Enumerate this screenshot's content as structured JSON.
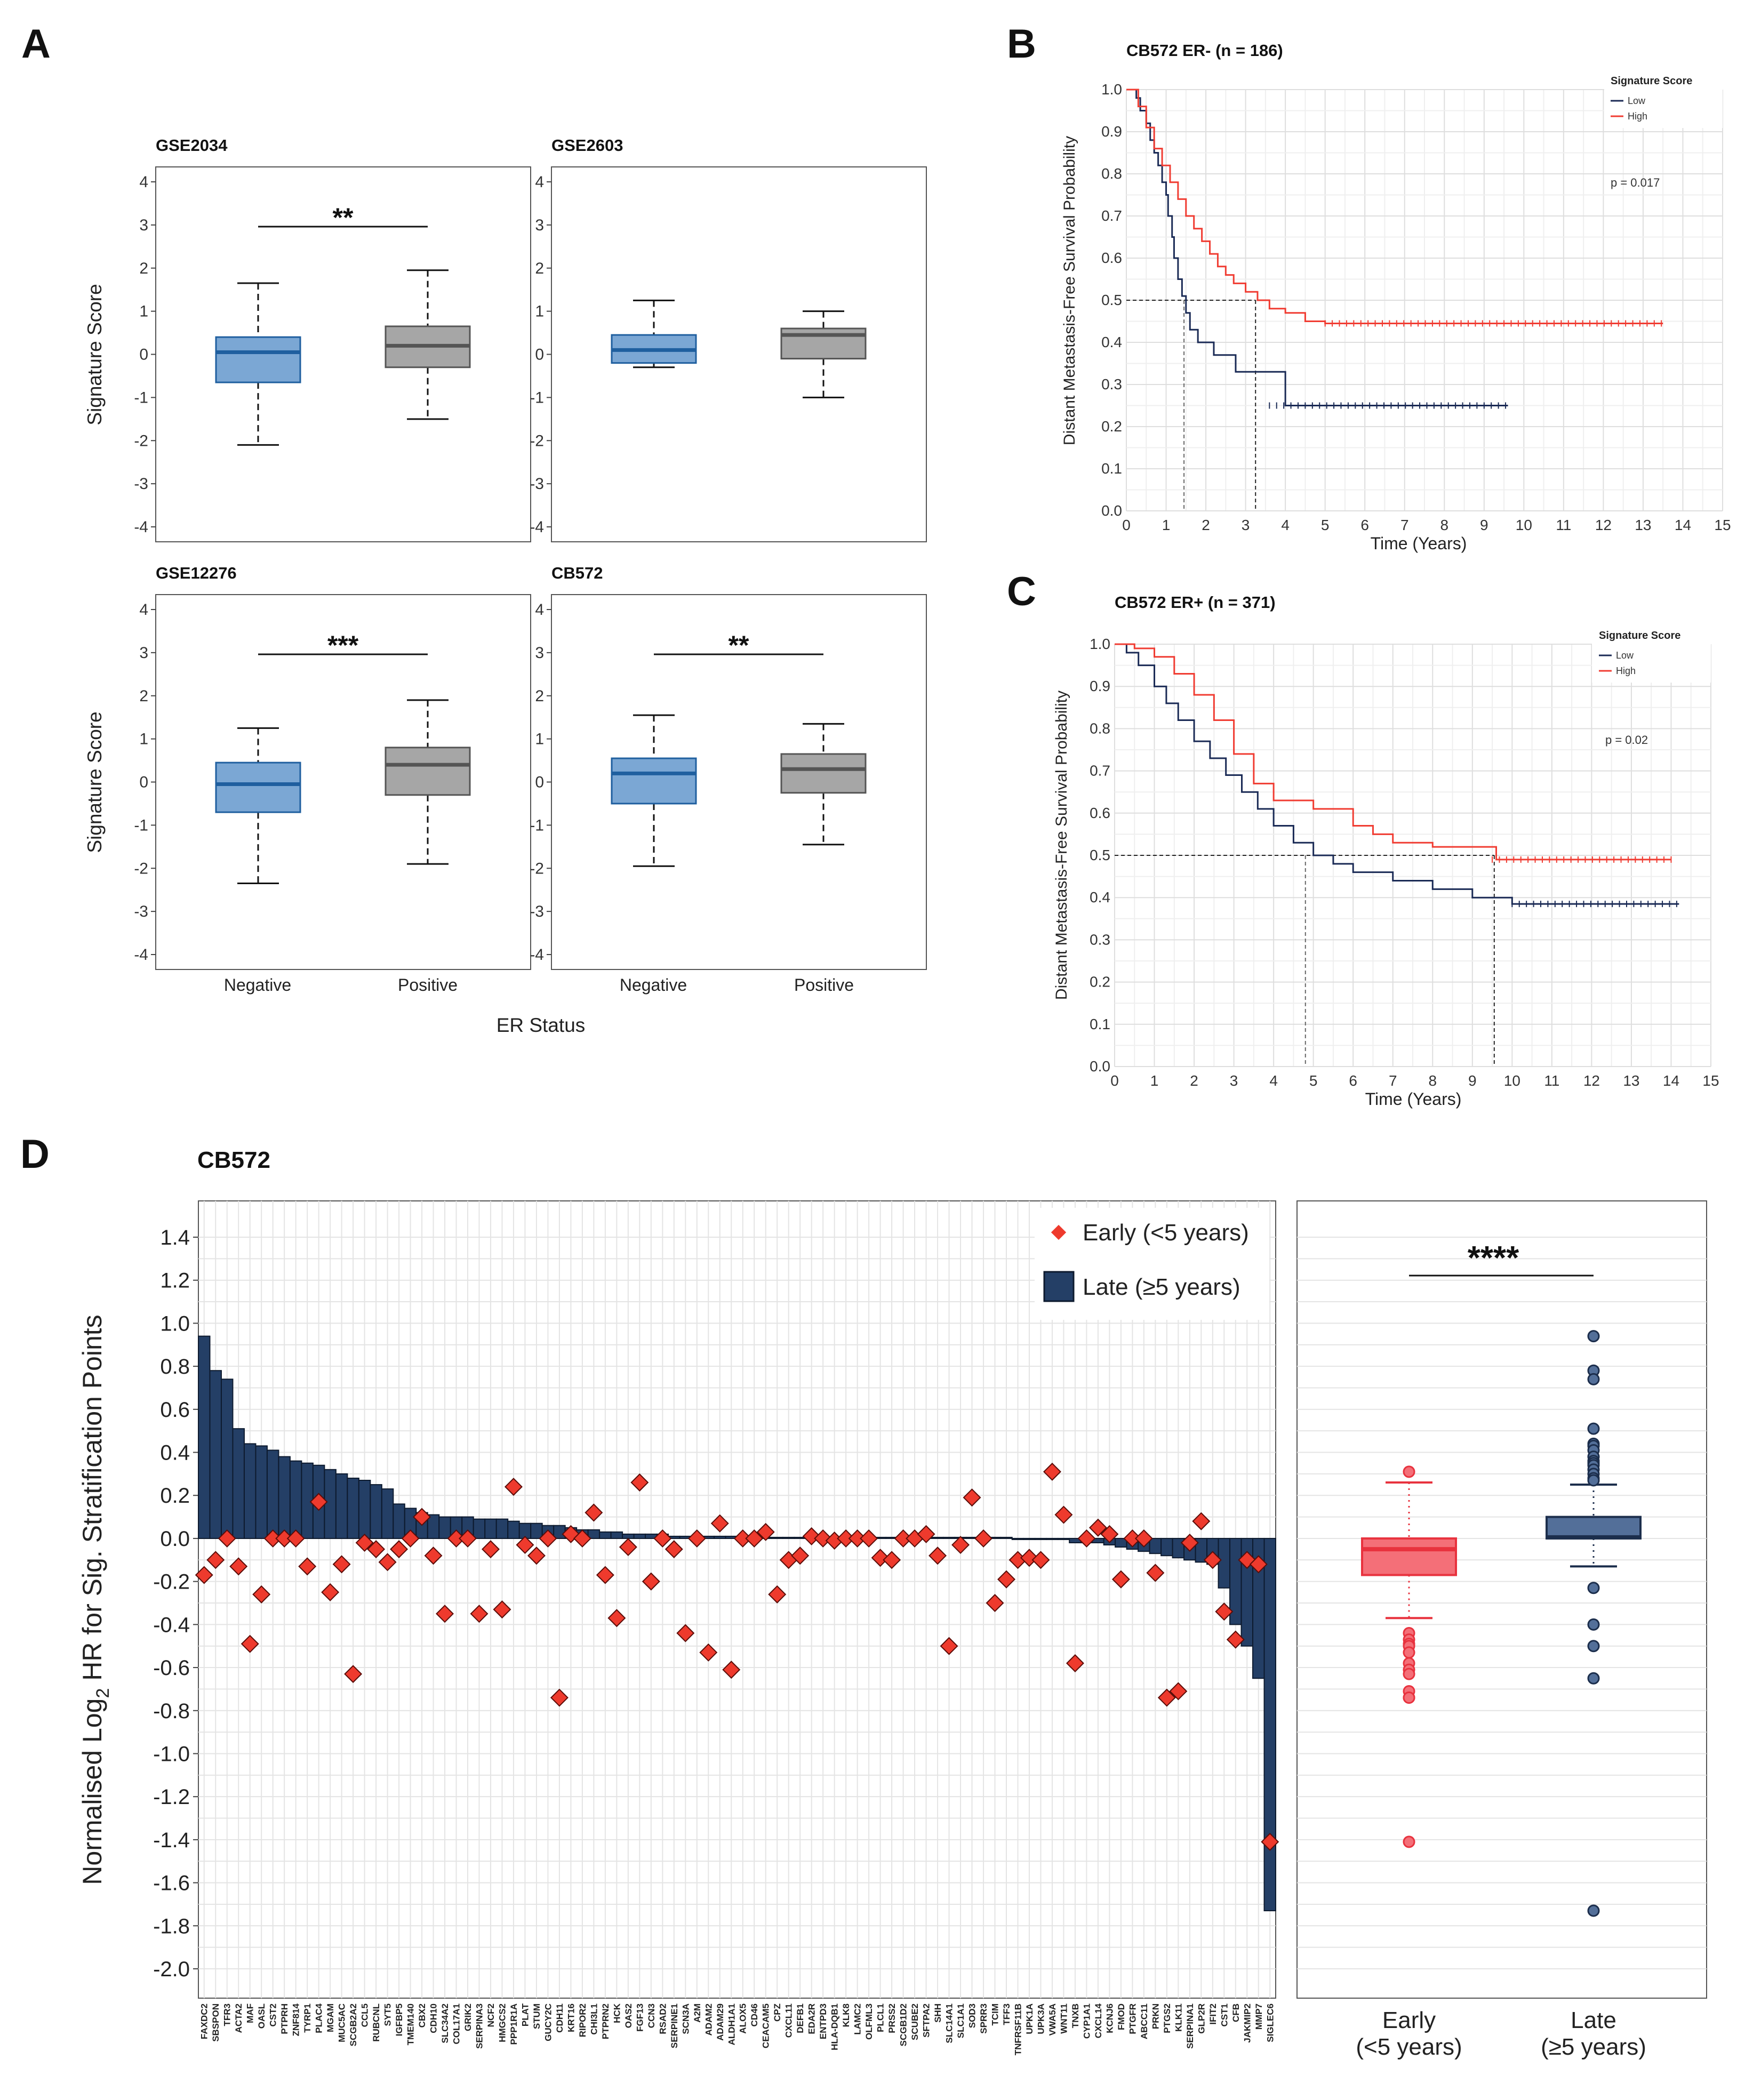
{
  "panel_labels": {
    "A": "A",
    "B": "B",
    "C": "C",
    "D": "D"
  },
  "colors": {
    "neg_fill": "#7ba7d4",
    "neg_line": "#1f5f9f",
    "pos_fill": "#a6a6a6",
    "pos_line": "#555555",
    "km_low": "#1a2a55",
    "km_high": "#f03c32",
    "bar_fill": "#243f66",
    "bar_line": "#0d1a2e",
    "diamond_fill": "#ee3a2d",
    "diamond_line": "#5a0c08",
    "early_fill": "#f46f78",
    "early_line": "#e8323e",
    "late_fill": "#536f99",
    "late_line": "#1c2e4c"
  },
  "chart_data": [
    {
      "id": "A",
      "type": "box",
      "ylabel": "Signature Score",
      "xlabel": "ER Status",
      "xcategories": [
        "Negative",
        "Positive"
      ],
      "ylim": [
        -4,
        4
      ],
      "yticks": [
        4,
        3,
        2,
        1,
        0,
        -1,
        -2,
        -3,
        -4
      ],
      "panels": [
        {
          "title": "GSE2034",
          "sig": "**",
          "boxes": [
            {
              "group": "Negative",
              "wlo": -2.1,
              "q1": -0.65,
              "med": 0.05,
              "q3": 0.4,
              "whi": 1.65
            },
            {
              "group": "Positive",
              "wlo": -1.5,
              "q1": -0.3,
              "med": 0.2,
              "q3": 0.65,
              "whi": 1.95
            }
          ]
        },
        {
          "title": "GSE2603",
          "sig": "",
          "boxes": [
            {
              "group": "Negative",
              "wlo": -0.3,
              "q1": -0.2,
              "med": 0.1,
              "q3": 0.45,
              "whi": 1.25
            },
            {
              "group": "Positive",
              "wlo": -1.0,
              "q1": -0.1,
              "med": 0.45,
              "q3": 0.6,
              "whi": 1.0
            }
          ]
        },
        {
          "title": "GSE12276",
          "sig": "***",
          "boxes": [
            {
              "group": "Negative",
              "wlo": -2.35,
              "q1": -0.7,
              "med": -0.05,
              "q3": 0.45,
              "whi": 1.25
            },
            {
              "group": "Positive",
              "wlo": -1.9,
              "q1": -0.3,
              "med": 0.4,
              "q3": 0.8,
              "whi": 1.9
            }
          ]
        },
        {
          "title": "CB572",
          "sig": "**",
          "boxes": [
            {
              "group": "Negative",
              "wlo": -1.95,
              "q1": -0.5,
              "med": 0.2,
              "q3": 0.55,
              "whi": 1.55
            },
            {
              "group": "Positive",
              "wlo": -1.45,
              "q1": -0.25,
              "med": 0.3,
              "q3": 0.65,
              "whi": 1.35
            }
          ]
        }
      ]
    },
    {
      "id": "B",
      "type": "line",
      "title": "CB572 ER- (n = 186)",
      "ylabel": "Distant Metastasis-Free Survival Probability",
      "xlabel": "Time (Years)",
      "xlim": [
        0,
        15
      ],
      "ylim": [
        0,
        1
      ],
      "xticks": [
        0,
        1,
        2,
        3,
        4,
        5,
        6,
        7,
        8,
        9,
        10,
        11,
        12,
        13,
        14,
        15
      ],
      "yticks": [
        "0.0",
        "0.1",
        "0.2",
        "0.3",
        "0.4",
        "0.5",
        "0.6",
        "0.7",
        "0.8",
        "0.9",
        "1.0"
      ],
      "legend_title": "Signature Score",
      "pvalue": "p = 0.017",
      "median_lines": [
        1.45,
        3.25
      ],
      "series": [
        {
          "name": "Low",
          "x": [
            0,
            0.25,
            0.35,
            0.5,
            0.6,
            0.7,
            0.8,
            0.9,
            1.0,
            1.05,
            1.15,
            1.2,
            1.3,
            1.4,
            1.5,
            1.6,
            1.8,
            2.2,
            2.6,
            2.75,
            3.1,
            3.6,
            4.0,
            9.6
          ],
          "y": [
            1.0,
            0.98,
            0.95,
            0.92,
            0.88,
            0.85,
            0.82,
            0.78,
            0.75,
            0.7,
            0.65,
            0.6,
            0.55,
            0.51,
            0.47,
            0.43,
            0.4,
            0.37,
            0.37,
            0.33,
            0.33,
            0.33,
            0.25,
            0.25
          ]
        },
        {
          "name": "High",
          "x": [
            0,
            0.3,
            0.5,
            0.7,
            0.9,
            1.1,
            1.3,
            1.5,
            1.7,
            1.9,
            2.1,
            2.3,
            2.5,
            2.7,
            3.0,
            3.3,
            3.6,
            4.0,
            4.5,
            5.0,
            6.0,
            13.5
          ],
          "y": [
            1.0,
            0.96,
            0.91,
            0.86,
            0.82,
            0.78,
            0.74,
            0.7,
            0.67,
            0.64,
            0.61,
            0.58,
            0.56,
            0.54,
            0.52,
            0.5,
            0.48,
            0.47,
            0.45,
            0.445,
            0.445,
            0.445
          ]
        }
      ]
    },
    {
      "id": "C",
      "type": "line",
      "title": "CB572 ER+ (n = 371)",
      "ylabel": "Distant Metastasis-Free Survival Probability",
      "xlabel": "Time (Years)",
      "xlim": [
        0,
        15
      ],
      "ylim": [
        0,
        1
      ],
      "xticks": [
        0,
        1,
        2,
        3,
        4,
        5,
        6,
        7,
        8,
        9,
        10,
        11,
        12,
        13,
        14,
        15
      ],
      "yticks": [
        "0.0",
        "0.1",
        "0.2",
        "0.3",
        "0.4",
        "0.5",
        "0.6",
        "0.7",
        "0.8",
        "0.9",
        "1.0"
      ],
      "legend_title": "Signature Score",
      "pvalue": "p = 0.02",
      "median_lines": [
        4.8,
        9.55
      ],
      "series": [
        {
          "name": "Low",
          "x": [
            0,
            0.3,
            0.6,
            1.0,
            1.3,
            1.6,
            2.0,
            2.4,
            2.8,
            3.2,
            3.6,
            4.0,
            4.5,
            5.0,
            5.5,
            6.0,
            7.0,
            8.0,
            9.0,
            10.0,
            12.0,
            14.2
          ],
          "y": [
            1.0,
            0.98,
            0.95,
            0.9,
            0.86,
            0.82,
            0.77,
            0.73,
            0.69,
            0.65,
            0.61,
            0.57,
            0.53,
            0.5,
            0.48,
            0.46,
            0.44,
            0.42,
            0.4,
            0.385,
            0.385,
            0.385
          ]
        },
        {
          "name": "High",
          "x": [
            0,
            0.5,
            1.0,
            1.5,
            2.0,
            2.5,
            3.0,
            3.5,
            4.0,
            5.0,
            6.0,
            6.5,
            7.0,
            8.0,
            9.5,
            9.6,
            14.0
          ],
          "y": [
            1.0,
            0.99,
            0.97,
            0.93,
            0.88,
            0.82,
            0.74,
            0.67,
            0.63,
            0.61,
            0.57,
            0.55,
            0.53,
            0.52,
            0.52,
            0.49,
            0.49
          ]
        }
      ]
    },
    {
      "id": "D-left",
      "type": "bar",
      "title": "CB572",
      "ylabel": "Normalised Log2 HR for Sig. Stratification Points",
      "ylim": [
        -2.0,
        1.4
      ],
      "yticks": [
        "1.4",
        "1.2",
        "1.0",
        "0.8",
        "0.6",
        "0.4",
        "0.2",
        "0.0",
        "-0.2",
        "-0.4",
        "-0.6",
        "-0.8",
        "-1.0",
        "-1.2",
        "-1.4",
        "-1.6",
        "-1.8",
        "-2.0"
      ],
      "legend": [
        "Early (<5 years)",
        "Late (≥5 years)"
      ],
      "genes": [
        "FAXDC2",
        "SBSPON",
        "TFR3",
        "ACTA2",
        "MAF",
        "OASL",
        "CST2",
        "PTPRH",
        "ZNF814",
        "TYRP1",
        "PLAC4",
        "MGAM",
        "MUC5AC",
        "SCGB2A2",
        "CCL5",
        "RUBCNL",
        "SYT5",
        "IGFBP5",
        "TMEM140",
        "CBX2",
        "CDH10",
        "SLC34A2",
        "COL17A1",
        "GRIK2",
        "SERPINA3",
        "NCF2",
        "HMGCS2",
        "PPP1R1A",
        "PLAT",
        "STUM",
        "GUCY2C",
        "CDH11",
        "KRT16",
        "RIPOR2",
        "CHI3L1",
        "PTPRN2",
        "HCK",
        "OAS2",
        "FGF13",
        "CCN3",
        "RSAD2",
        "SERPINE1",
        "SCN3A",
        "A2M",
        "ADAM2",
        "ADAM29",
        "ALDH1A1",
        "ALOX5",
        "CD46",
        "CEACAM5",
        "CPZ",
        "CXCL11",
        "DEFB1",
        "EDA2R",
        "ENTPD3",
        "HLA-DQB1",
        "KLK8",
        "LAMC2",
        "OLFML3",
        "PLCL1",
        "PRSS2",
        "SCGB1D2",
        "SCUBE2",
        "SFTPA2",
        "SHH",
        "SLC14A1",
        "SLC1A1",
        "SOD3",
        "SPRR3",
        "TCIM",
        "TFF3",
        "TNFRSF11B",
        "UPK1A",
        "UPK3A",
        "VWA5A",
        "WNT11",
        "TNXB",
        "CYP1A1",
        "CXCL14",
        "KCNJ6",
        "FMOD",
        "PTGFR",
        "ABCC11",
        "PRKN",
        "PTGS2",
        "KLK11",
        "SERPINA1",
        "GLP2R",
        "IFIT2",
        "CST1",
        "CFB",
        "JAKMIP2",
        "MMP7",
        "SIGLEC6"
      ],
      "late_values": [
        0.94,
        0.78,
        0.74,
        0.51,
        0.44,
        0.43,
        0.41,
        0.38,
        0.36,
        0.35,
        0.34,
        0.32,
        0.3,
        0.28,
        0.27,
        0.25,
        0.23,
        0.16,
        0.14,
        0.12,
        0.11,
        0.1,
        0.1,
        0.1,
        0.09,
        0.09,
        0.09,
        0.08,
        0.07,
        0.07,
        0.06,
        0.06,
        0.05,
        0.04,
        0.04,
        0.03,
        0.03,
        0.02,
        0.02,
        0.02,
        0.02,
        0.01,
        0.01,
        0.01,
        0.01,
        0.01,
        0.01,
        0.005,
        0.005,
        0.005,
        0.005,
        0.005,
        0.005,
        0.005,
        0.005,
        0.005,
        0.005,
        0.005,
        0.005,
        0.005,
        0.005,
        0.005,
        0.005,
        0.005,
        0.005,
        0.005,
        0.005,
        0.005,
        0.005,
        0.005,
        0.005,
        0.0,
        0.0,
        0.0,
        0.0,
        0.0,
        -0.02,
        -0.02,
        -0.02,
        -0.03,
        -0.04,
        -0.05,
        -0.06,
        -0.07,
        -0.08,
        -0.09,
        -0.1,
        -0.11,
        -0.12,
        -0.23,
        -0.4,
        -0.5,
        -0.65,
        -1.73
      ],
      "early_values": [
        -0.17,
        -0.1,
        0.0,
        -0.13,
        -0.49,
        -0.26,
        0.0,
        0.0,
        0.0,
        -0.13,
        0.17,
        -0.25,
        -0.12,
        -0.63,
        -0.02,
        -0.05,
        -0.11,
        -0.05,
        0.0,
        0.1,
        -0.08,
        -0.35,
        0.0,
        0.0,
        -0.35,
        -0.05,
        -0.33,
        0.24,
        -0.03,
        -0.08,
        0.0,
        -0.74,
        0.02,
        0.0,
        0.12,
        -0.17,
        -0.37,
        -0.04,
        0.26,
        -0.2,
        0.0,
        -0.05,
        -0.44,
        0.0,
        -0.53,
        0.07,
        -0.61,
        0.0,
        0.0,
        0.03,
        -0.26,
        -0.1,
        -0.08,
        0.01,
        0.0,
        -0.01,
        0.0,
        0.0,
        0.0,
        -0.09,
        -0.1,
        0.0,
        0.0,
        0.02,
        -0.08,
        -0.5,
        -0.03,
        0.19,
        0.0,
        -0.3,
        -0.19,
        -0.1,
        -0.09,
        -0.1,
        0.31,
        0.11,
        -0.58,
        0.0,
        0.05,
        0.02,
        -0.19,
        0.0,
        0.0,
        -0.16,
        -0.74,
        -0.71,
        -0.02,
        0.08,
        -0.1,
        -0.34,
        -0.47,
        -0.1,
        -0.12,
        -1.41
      ]
    },
    {
      "id": "D-right",
      "type": "box",
      "sig": "****",
      "ylim": [
        -2.0,
        1.4
      ],
      "categories": [
        "Early\n(<5 years)",
        "Late\n(≥5 years)"
      ],
      "boxes": [
        {
          "group": "Early",
          "wlo": -0.37,
          "q1": -0.17,
          "med": -0.05,
          "q3": 0.0,
          "whi": 0.26,
          "outliers": [
            0.31,
            -0.44,
            -0.47,
            -0.49,
            -0.5,
            -0.53,
            -0.58,
            -0.61,
            -0.63,
            -0.71,
            -0.74,
            -0.74,
            -1.41
          ]
        },
        {
          "group": "Late",
          "wlo": -0.13,
          "q1": 0.0,
          "med": 0.005,
          "q3": 0.1,
          "whi": 0.25,
          "outliers": [
            0.94,
            0.78,
            0.74,
            0.51,
            0.44,
            0.43,
            0.41,
            0.38,
            0.36,
            0.35,
            0.34,
            0.32,
            0.3,
            0.28,
            0.27,
            -0.23,
            -0.4,
            -0.5,
            -0.65,
            -1.73
          ]
        }
      ]
    }
  ]
}
